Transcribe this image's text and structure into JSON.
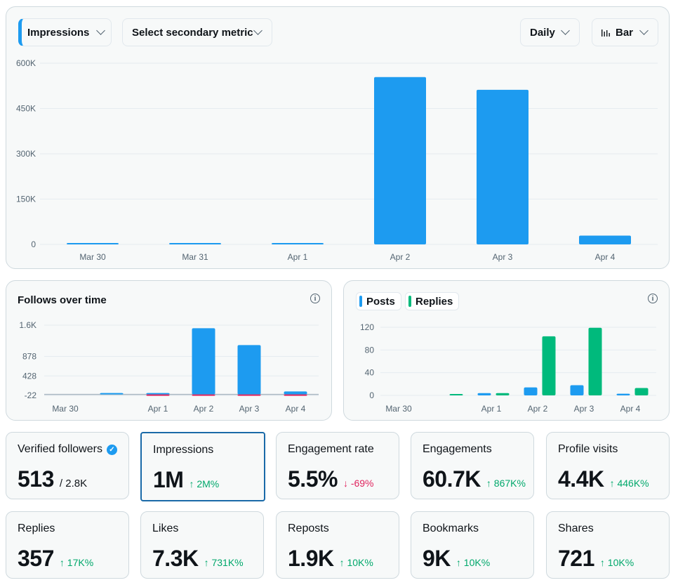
{
  "toolbar": {
    "primary_metric": "Impressions",
    "secondary_metric": "Select secondary metric",
    "interval": "Daily",
    "chart_type": "Bar",
    "chart_type_icon": "bar-chart-icon"
  },
  "followers_panel": {
    "title": "Follows over time",
    "info_icon": "info-icon"
  },
  "posts_panel": {
    "legend": [
      {
        "label": "Posts",
        "color": "#1d9bf0"
      },
      {
        "label": "Replies",
        "color": "#00ba7c"
      }
    ],
    "info_icon": "info-icon"
  },
  "colors": {
    "primary": "#1d9bf0",
    "replies": "#00ba7c",
    "negative": "#e0245e",
    "up": "#00a86b"
  },
  "chart_data": [
    {
      "type": "bar",
      "categories": [
        "Mar 30",
        "Mar 31",
        "Apr 1",
        "Apr 2",
        "Apr 3",
        "Apr 4"
      ],
      "values": [
        800,
        1000,
        2000,
        554000,
        512000,
        29000
      ],
      "ylim": [
        0,
        600000
      ],
      "yticks": [
        "600K",
        "450K",
        "300K",
        "150K",
        "0"
      ],
      "ytick_values": [
        600000,
        450000,
        300000,
        150000,
        0
      ],
      "grid": true
    },
    {
      "type": "bar",
      "categories": [
        "Mar 30",
        "Mar 31",
        "Apr 1",
        "Apr 2",
        "Apr 3",
        "Apr 4"
      ],
      "xtick_labels": [
        "Mar 30",
        "",
        "Apr 1",
        "Apr 2",
        "Apr 3",
        "Apr 4"
      ],
      "series": [
        {
          "values": [
            0,
            8,
            30,
            1530,
            1140,
            70
          ],
          "color": "#1d9bf0"
        },
        {
          "values": [
            0,
            0,
            -3,
            -20,
            -20,
            -2
          ],
          "color": "#e0245e"
        }
      ],
      "ylim": [
        -22,
        1600
      ],
      "yticks": [
        "1.6K",
        "878",
        "428",
        "-22"
      ],
      "ytick_values": [
        1600,
        878,
        428,
        -22
      ],
      "grid": true
    },
    {
      "type": "bar",
      "categories": [
        "Mar 30",
        "Mar 31",
        "Apr 1",
        "Apr 2",
        "Apr 3",
        "Apr 4"
      ],
      "xtick_labels": [
        "Mar 30",
        "",
        "Apr 1",
        "Apr 2",
        "Apr 3",
        "Apr 4"
      ],
      "series": [
        {
          "name": "Posts",
          "values": [
            0,
            0,
            4,
            14,
            18,
            3
          ],
          "color": "#1d9bf0"
        },
        {
          "name": "Replies",
          "values": [
            0,
            1,
            4,
            104,
            119,
            13
          ],
          "color": "#00ba7c"
        }
      ],
      "ylim": [
        0,
        120
      ],
      "yticks": [
        "120",
        "80",
        "40",
        "0"
      ],
      "ytick_values": [
        120,
        80,
        40,
        0
      ],
      "grid": true
    }
  ],
  "metrics": [
    {
      "label": "Verified followers",
      "value": "513",
      "extra": "/ 2.8K",
      "verified": true
    },
    {
      "label": "Impressions",
      "value": "1M",
      "change": "↑ 2M%",
      "dir": "up",
      "active": true
    },
    {
      "label": "Engagement rate",
      "value": "5.5%",
      "change": "↓ -69%",
      "dir": "down"
    },
    {
      "label": "Engagements",
      "value": "60.7K",
      "change": "↑ 867K%",
      "dir": "up"
    },
    {
      "label": "Profile visits",
      "value": "4.4K",
      "change": "↑ 446K%",
      "dir": "up"
    },
    {
      "label": "Replies",
      "value": "357",
      "change": "↑ 17K%",
      "dir": "up"
    },
    {
      "label": "Likes",
      "value": "7.3K",
      "change": "↑ 731K%",
      "dir": "up"
    },
    {
      "label": "Reposts",
      "value": "1.9K",
      "change": "↑ 10K%",
      "dir": "up"
    },
    {
      "label": "Bookmarks",
      "value": "9K",
      "change": "↑ 10K%",
      "dir": "up"
    },
    {
      "label": "Shares",
      "value": "721",
      "change": "↑ 10K%",
      "dir": "up"
    }
  ]
}
